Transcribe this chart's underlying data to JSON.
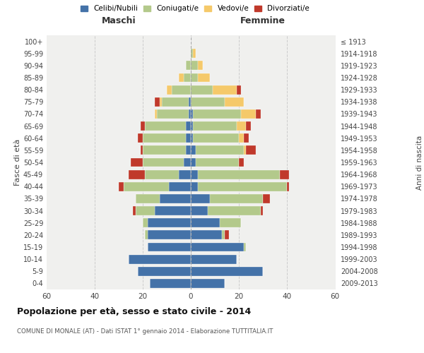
{
  "age_groups": [
    "0-4",
    "5-9",
    "10-14",
    "15-19",
    "20-24",
    "25-29",
    "30-34",
    "35-39",
    "40-44",
    "45-49",
    "50-54",
    "55-59",
    "60-64",
    "65-69",
    "70-74",
    "75-79",
    "80-84",
    "85-89",
    "90-94",
    "95-99",
    "100+"
  ],
  "birth_years": [
    "2009-2013",
    "2004-2008",
    "1999-2003",
    "1994-1998",
    "1989-1993",
    "1984-1988",
    "1979-1983",
    "1974-1978",
    "1969-1973",
    "1964-1968",
    "1959-1963",
    "1954-1958",
    "1949-1953",
    "1944-1948",
    "1939-1943",
    "1934-1938",
    "1929-1933",
    "1924-1928",
    "1919-1923",
    "1914-1918",
    "≤ 1913"
  ],
  "males": {
    "celibi": [
      17,
      22,
      26,
      18,
      18,
      18,
      15,
      13,
      9,
      5,
      3,
      2,
      2,
      2,
      1,
      1,
      0,
      0,
      0,
      0,
      0
    ],
    "coniugati": [
      0,
      0,
      0,
      0,
      1,
      2,
      8,
      10,
      19,
      14,
      17,
      18,
      18,
      17,
      13,
      11,
      8,
      3,
      2,
      0,
      0
    ],
    "vedovi": [
      0,
      0,
      0,
      0,
      0,
      0,
      0,
      0,
      0,
      0,
      0,
      0,
      0,
      0,
      1,
      1,
      2,
      2,
      0,
      0,
      0
    ],
    "divorziati": [
      0,
      0,
      0,
      0,
      0,
      0,
      1,
      0,
      2,
      7,
      5,
      1,
      2,
      2,
      0,
      2,
      0,
      0,
      0,
      0,
      0
    ]
  },
  "females": {
    "nubili": [
      14,
      30,
      19,
      22,
      13,
      12,
      7,
      8,
      3,
      3,
      2,
      2,
      1,
      1,
      1,
      0,
      0,
      0,
      0,
      0,
      0
    ],
    "coniugate": [
      0,
      0,
      0,
      1,
      1,
      9,
      22,
      22,
      37,
      34,
      18,
      20,
      19,
      18,
      20,
      14,
      9,
      3,
      3,
      1,
      0
    ],
    "vedove": [
      0,
      0,
      0,
      0,
      0,
      0,
      0,
      0,
      0,
      0,
      0,
      1,
      2,
      4,
      6,
      8,
      10,
      5,
      2,
      1,
      0
    ],
    "divorziate": [
      0,
      0,
      0,
      0,
      2,
      0,
      1,
      3,
      1,
      4,
      2,
      4,
      2,
      2,
      2,
      0,
      2,
      0,
      0,
      0,
      0
    ]
  },
  "colors": {
    "celibi": "#4472a8",
    "coniugati": "#b3c98b",
    "vedovi": "#f5c96a",
    "divorziati": "#c0392b"
  },
  "title": "Popolazione per età, sesso e stato civile - 2014",
  "subtitle": "COMUNE DI MONALE (AT) - Dati ISTAT 1° gennaio 2014 - Elaborazione TUTTITALIA.IT",
  "label_maschi": "Maschi",
  "label_femmine": "Femmine",
  "ylabel_left": "Fasce di età",
  "ylabel_right": "Anni di nascita",
  "xlim": 60,
  "bg_color": "#f0f0ee",
  "legend_labels": [
    "Celibi/Nubili",
    "Coniugati/e",
    "Vedovi/e",
    "Divorziati/e"
  ]
}
